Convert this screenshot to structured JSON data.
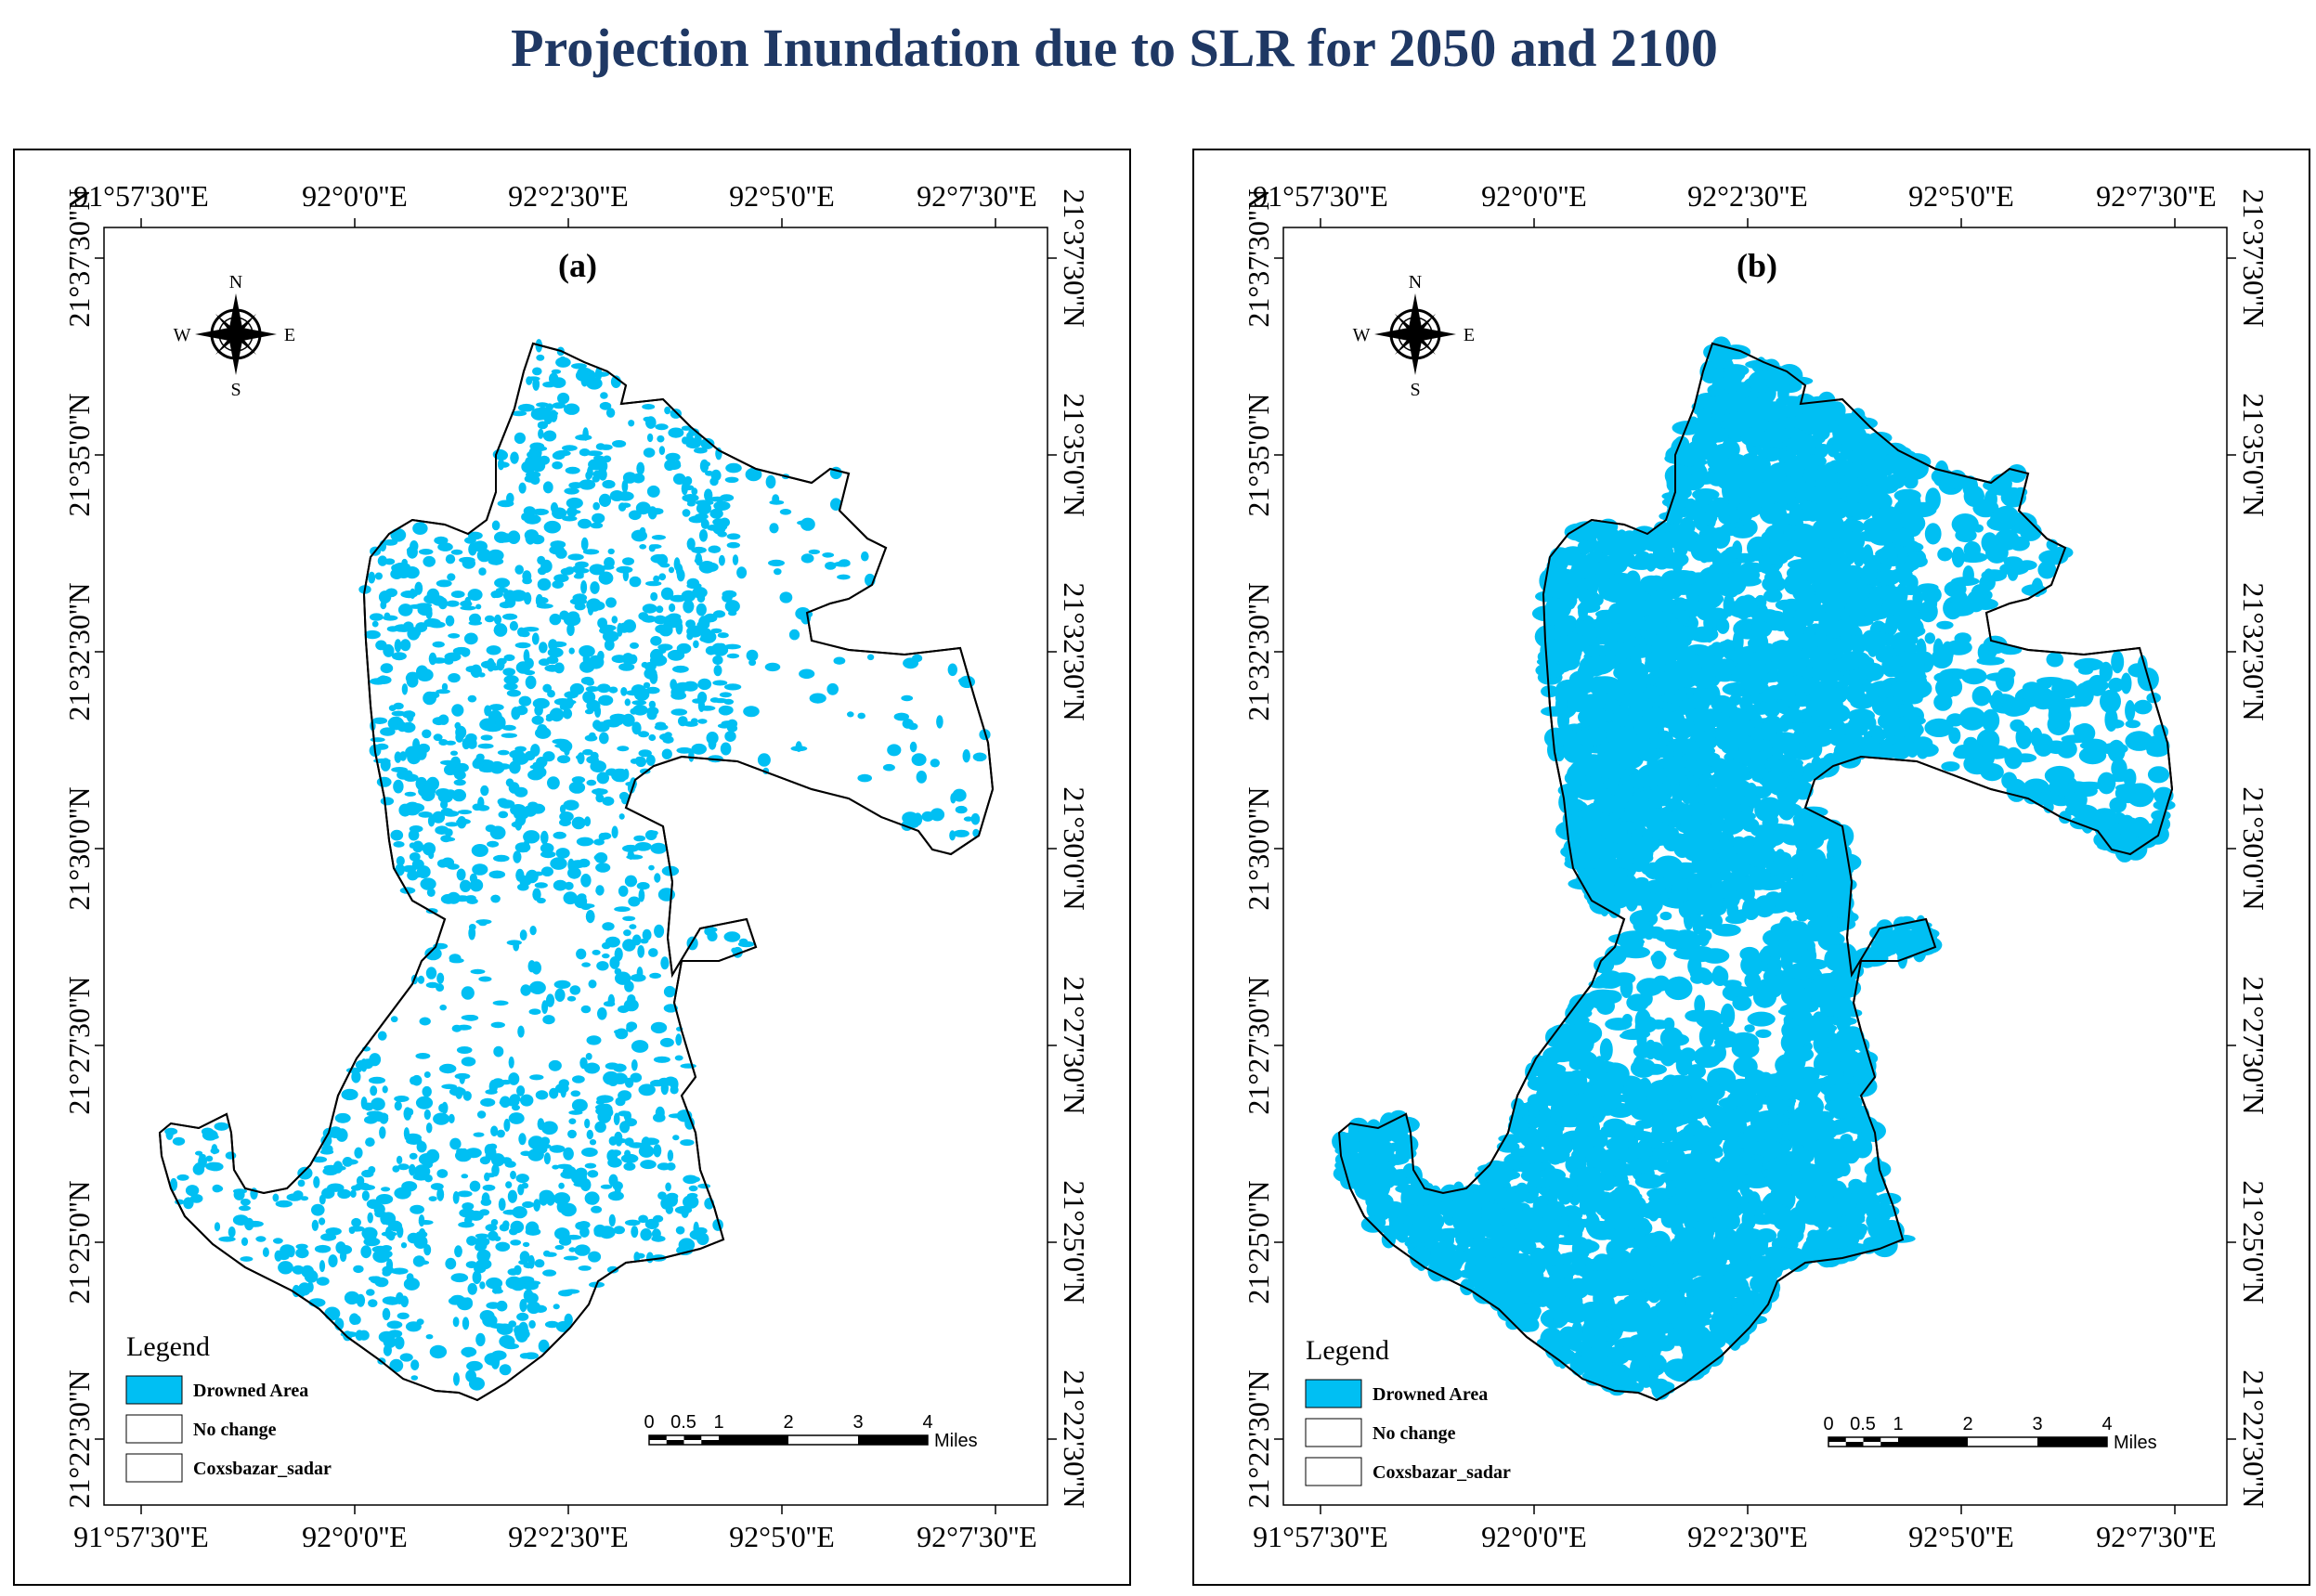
{
  "title": "Projection Inundation due to SLR for 2050 and 2100",
  "colors": {
    "drowned": "#00bff3",
    "title": "#1f3864",
    "boundary": "#000000"
  },
  "panels": [
    {
      "label": "(a)",
      "lon_ticks": [
        "91°57'30''E",
        "92°0'0''E",
        "92°2'30''E",
        "92°5'0''E",
        "92°7'30''E"
      ],
      "lat_ticks": [
        "21°37'30''N",
        "21°35'0''N",
        "21°32'30''N",
        "21°30'0''N",
        "21°27'30''N",
        "21°25'0''N",
        "21°22'30''N"
      ],
      "legend": {
        "title": "Legend",
        "items": [
          "Drowned Area",
          "No change",
          "Coxsbazar_sadar"
        ]
      },
      "scale": {
        "ticks": [
          "0",
          "0.5",
          "1",
          "2",
          "3",
          "4"
        ],
        "unit": "Miles"
      },
      "compass": {
        "n": "N",
        "s": "S",
        "e": "E",
        "w": "W"
      },
      "inundation_level": 0.32
    },
    {
      "label": "(b)",
      "lon_ticks": [
        "91°57'30''E",
        "92°0'0''E",
        "92°2'30''E",
        "92°5'0''E",
        "92°7'30''E"
      ],
      "lat_ticks": [
        "21°37'30''N",
        "21°35'0''N",
        "21°32'30''N",
        "21°30'0''N",
        "21°27'30''N",
        "21°25'0''N",
        "21°22'30''N"
      ],
      "legend": {
        "title": "Legend",
        "items": [
          "Drowned Area",
          "No change",
          "Coxsbazar_sadar"
        ]
      },
      "scale": {
        "ticks": [
          "0",
          "0.5",
          "1",
          "2",
          "3",
          "4"
        ],
        "unit": "Miles"
      },
      "compass": {
        "n": "N",
        "s": "S",
        "e": "E",
        "w": "W"
      },
      "inundation_level": 0.78
    }
  ]
}
